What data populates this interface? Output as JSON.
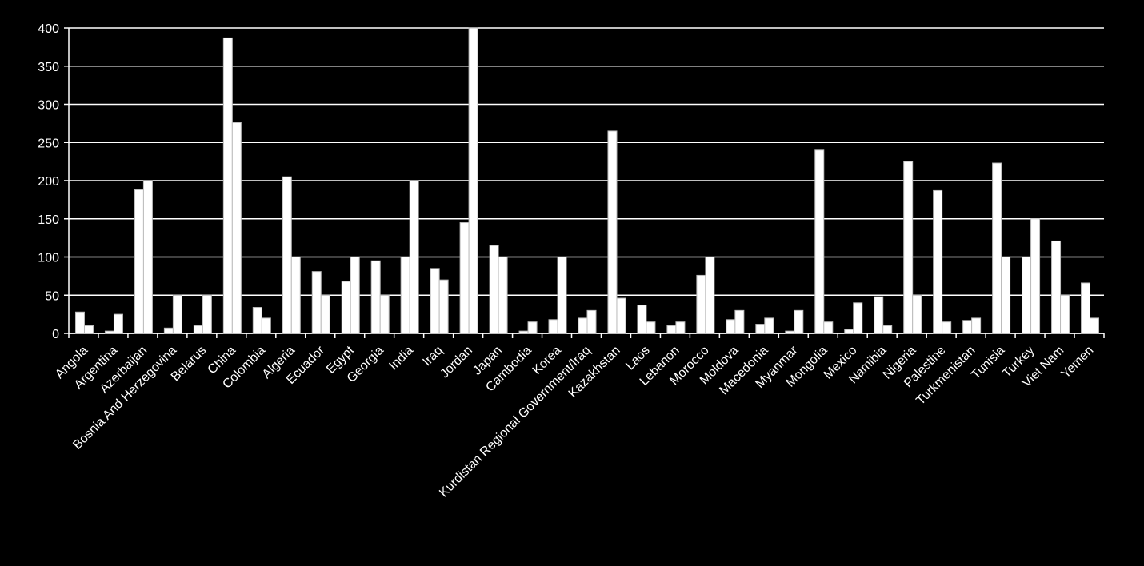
{
  "chart_data": {
    "type": "bar",
    "categories": [
      "Angola",
      "Argentina",
      "Azerbaijan",
      "Bosnia And Herzegovina",
      "Belarus",
      "China",
      "Colombia",
      "Algeria",
      "Ecuador",
      "Egypt",
      "Georgia",
      "India",
      "Iraq",
      "Jordan",
      "Japan",
      "Cambodia",
      "Korea",
      "Kurdistan Regional Government/Iraq",
      "Kazakhstan",
      "Laos",
      "Lebanon",
      "Morocco",
      "Moldova",
      "Macedonia",
      "Myanmar",
      "Mongolia",
      "Mexico",
      "Namibia",
      "Nigeria",
      "Palestine",
      "Turkmenistan",
      "Tunisia",
      "Turkey",
      "Viet Nam",
      "Yemen"
    ],
    "series": [
      {
        "color": "#ffffff",
        "values": [
          28,
          3,
          188,
          7,
          10,
          387,
          34,
          205,
          81,
          68,
          95,
          100,
          85,
          145,
          115,
          3,
          18,
          20,
          265,
          37,
          10,
          76,
          18,
          12,
          3,
          240,
          5,
          48,
          225,
          187,
          17,
          223,
          100,
          121,
          66
        ]
      },
      {
        "color": "#ffffff",
        "values": [
          10,
          25,
          200,
          50,
          50,
          276,
          20,
          100,
          50,
          100,
          50,
          200,
          70,
          400,
          100,
          15,
          100,
          30,
          46,
          15,
          15,
          100,
          30,
          20,
          30,
          15,
          40,
          10,
          50,
          15,
          20,
          100,
          150,
          50,
          20
        ]
      }
    ],
    "ylim": [
      0,
      400
    ],
    "yticks": [
      0,
      50,
      100,
      150,
      200,
      250,
      300,
      350,
      400
    ],
    "grid": true
  }
}
